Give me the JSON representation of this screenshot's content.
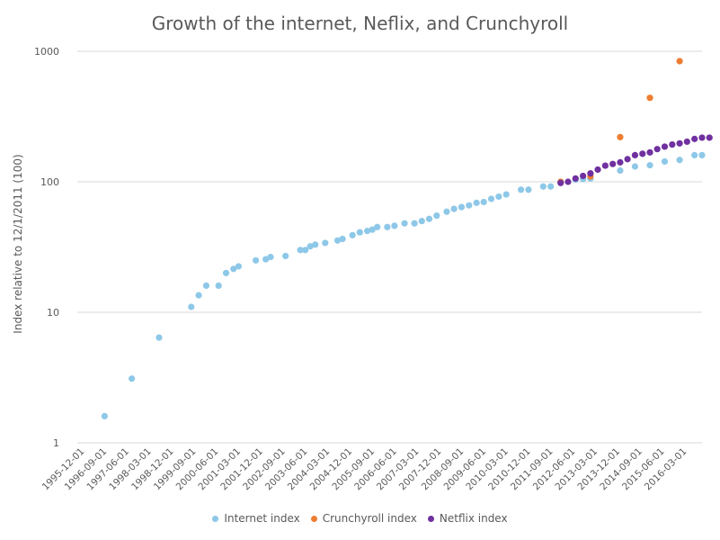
{
  "chart_data": {
    "type": "scatter",
    "title": "Growth of the internet, Neflix, and Crunchyroll",
    "xlabel": "",
    "ylabel": "Index relative to 12/1/2011 (100)",
    "yscale": "log",
    "ylim": [
      1,
      1000
    ],
    "yticks": [
      1,
      10,
      100,
      1000
    ],
    "xlim": [
      "1995-09-01",
      "2016-09-01"
    ],
    "xticks": [
      "1995-12-01",
      "1996-09-01",
      "1997-06-01",
      "1998-03-01",
      "1998-12-01",
      "1999-09-01",
      "2000-06-01",
      "2001-03-01",
      "2001-12-01",
      "2002-09-01",
      "2003-06-01",
      "2004-03-01",
      "2004-12-01",
      "2005-09-01",
      "2006-06-01",
      "2007-03-01",
      "2007-12-01",
      "2008-09-01",
      "2009-06-01",
      "2010-03-01",
      "2010-12-01",
      "2011-09-01",
      "2012-06-01",
      "2013-03-01",
      "2013-12-01",
      "2014-09-01",
      "2015-06-01",
      "2016-03-01"
    ],
    "grid": "horizontal",
    "legend": "bottom",
    "series": [
      {
        "name": "Internet index",
        "color": "#8ec8e8",
        "points": [
          [
            "1996-08-01",
            1.6
          ],
          [
            "1997-07-01",
            3.1
          ],
          [
            "1998-06-01",
            6.4
          ],
          [
            "1999-07-01",
            11
          ],
          [
            "1999-10-01",
            13.5
          ],
          [
            "2000-01-01",
            16
          ],
          [
            "2000-06-01",
            16
          ],
          [
            "2000-09-01",
            20
          ],
          [
            "2000-12-01",
            21.5
          ],
          [
            "2001-02-01",
            22.5
          ],
          [
            "2001-09-01",
            25
          ],
          [
            "2002-01-01",
            25.5
          ],
          [
            "2002-03-01",
            26.5
          ],
          [
            "2002-09-01",
            27
          ],
          [
            "2003-03-01",
            30
          ],
          [
            "2003-05-01",
            30
          ],
          [
            "2003-07-01",
            32
          ],
          [
            "2003-09-01",
            33
          ],
          [
            "2004-01-01",
            34
          ],
          [
            "2004-06-01",
            35.5
          ],
          [
            "2004-08-01",
            36.5
          ],
          [
            "2004-12-01",
            39
          ],
          [
            "2005-03-01",
            41
          ],
          [
            "2005-06-01",
            42
          ],
          [
            "2005-08-01",
            43
          ],
          [
            "2005-10-01",
            45
          ],
          [
            "2006-02-01",
            45
          ],
          [
            "2006-05-01",
            46
          ],
          [
            "2006-09-01",
            48
          ],
          [
            "2007-01-01",
            48
          ],
          [
            "2007-04-01",
            50
          ],
          [
            "2007-07-01",
            52
          ],
          [
            "2007-10-01",
            55
          ],
          [
            "2008-02-01",
            59
          ],
          [
            "2008-05-01",
            62
          ],
          [
            "2008-08-01",
            64
          ],
          [
            "2008-11-01",
            66
          ],
          [
            "2009-02-01",
            69
          ],
          [
            "2009-05-01",
            70
          ],
          [
            "2009-08-01",
            74
          ],
          [
            "2009-11-01",
            77
          ],
          [
            "2010-02-01",
            80
          ],
          [
            "2010-08-01",
            87
          ],
          [
            "2010-11-01",
            87
          ],
          [
            "2011-05-01",
            92
          ],
          [
            "2011-08-01",
            92
          ],
          [
            "2011-12-01",
            100
          ],
          [
            "2012-06-01",
            104
          ],
          [
            "2012-09-01",
            105
          ],
          [
            "2012-12-01",
            106
          ],
          [
            "2013-12-01",
            122
          ],
          [
            "2014-06-01",
            131
          ],
          [
            "2014-12-01",
            134
          ],
          [
            "2015-06-01",
            143
          ],
          [
            "2015-12-01",
            147
          ],
          [
            "2016-06-01",
            160
          ],
          [
            "2016-09-01",
            160
          ]
        ]
      },
      {
        "name": "Crunchyroll index",
        "color": "#ed7d31",
        "points": [
          [
            "2011-12-01",
            100
          ],
          [
            "2012-12-01",
            110
          ],
          [
            "2013-12-01",
            220
          ],
          [
            "2014-12-01",
            440
          ],
          [
            "2015-12-01",
            840
          ]
        ]
      },
      {
        "name": "Netflix index",
        "color": "#70309f",
        "points": [
          [
            "2011-12-01",
            98
          ],
          [
            "2012-03-01",
            100
          ],
          [
            "2012-06-01",
            106
          ],
          [
            "2012-09-01",
            111
          ],
          [
            "2012-12-01",
            116
          ],
          [
            "2013-03-01",
            124
          ],
          [
            "2013-06-01",
            133
          ],
          [
            "2013-09-01",
            137
          ],
          [
            "2013-12-01",
            141
          ],
          [
            "2014-03-01",
            149
          ],
          [
            "2014-06-01",
            160
          ],
          [
            "2014-09-01",
            164
          ],
          [
            "2014-12-01",
            168
          ],
          [
            "2015-03-01",
            178
          ],
          [
            "2015-06-01",
            186
          ],
          [
            "2015-09-01",
            193
          ],
          [
            "2015-12-01",
            197
          ],
          [
            "2016-03-01",
            203
          ],
          [
            "2016-06-01",
            213
          ],
          [
            "2016-09-01",
            218
          ],
          [
            "2016-12-01",
            218
          ]
        ]
      }
    ]
  }
}
